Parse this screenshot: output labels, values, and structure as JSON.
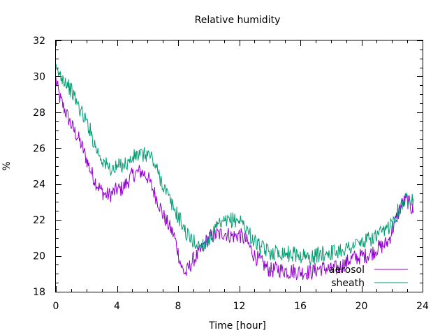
{
  "chart_data": {
    "type": "line",
    "title": "Relative humidity",
    "xlabel": "Time [hour]",
    "ylabel": "%",
    "xlim": [
      0,
      24
    ],
    "ylim": [
      18,
      32
    ],
    "xticks": [
      0,
      4,
      8,
      12,
      16,
      20,
      24
    ],
    "yticks": [
      18,
      20,
      22,
      24,
      26,
      28,
      30,
      32
    ],
    "x_minor_step": 1,
    "y_minor_step": 0.5,
    "grid": false,
    "legend_position": "bottom-right",
    "series": [
      {
        "name": "aerosol",
        "color": "#9400d3",
        "x": [
          0,
          0.25,
          0.5,
          0.75,
          1,
          1.25,
          1.5,
          1.75,
          2,
          2.25,
          2.5,
          2.75,
          3,
          3.25,
          3.5,
          3.75,
          4,
          4.25,
          4.5,
          4.75,
          5,
          5.25,
          5.5,
          5.75,
          6,
          6.25,
          6.5,
          6.75,
          7,
          7.25,
          7.5,
          7.75,
          8,
          8.25,
          8.5,
          8.75,
          9,
          9.25,
          9.5,
          9.75,
          10,
          10.25,
          10.5,
          10.75,
          11,
          11.25,
          11.5,
          11.75,
          12,
          12.25,
          12.5,
          12.75,
          13,
          13.25,
          13.5,
          13.75,
          14,
          14.25,
          14.5,
          14.75,
          15,
          15.25,
          15.5,
          15.75,
          16,
          16.25,
          16.5,
          16.75,
          17,
          17.25,
          17.5,
          17.75,
          18,
          18.25,
          18.5,
          18.75,
          19,
          19.25,
          19.5,
          19.75,
          20,
          20.25,
          20.5,
          20.75,
          21,
          21.25,
          21.5,
          21.75,
          22,
          22.25,
          22.5,
          22.75,
          23,
          23.25,
          23.4
        ],
        "y": [
          29.8,
          28.8,
          28.3,
          27.8,
          27.3,
          26.9,
          26.5,
          26.0,
          25.4,
          24.8,
          24.3,
          23.9,
          23.6,
          23.4,
          23.4,
          23.5,
          23.7,
          23.7,
          23.9,
          24.2,
          24.5,
          24.6,
          24.7,
          24.6,
          24.4,
          23.9,
          23.4,
          22.9,
          22.3,
          21.9,
          21.5,
          21.1,
          20.2,
          19.3,
          19.0,
          19.4,
          19.8,
          20.0,
          20.3,
          20.7,
          21.0,
          21.1,
          21.2,
          21.2,
          21.3,
          21.2,
          21.1,
          21.1,
          21.2,
          21.0,
          20.8,
          20.4,
          20.0,
          19.8,
          19.6,
          19.4,
          19.2,
          19.2,
          19.3,
          19.2,
          19.2,
          19.1,
          19.2,
          19.1,
          19.1,
          19.1,
          19.1,
          19.1,
          19.2,
          19.3,
          19.3,
          19.3,
          19.2,
          19.3,
          19.3,
          19.5,
          19.6,
          19.8,
          19.9,
          19.9,
          20.0,
          20.0,
          20.1,
          20.2,
          20.4,
          20.5,
          20.6,
          20.8,
          21.4,
          22.0,
          22.6,
          23.0,
          23.1,
          22.7,
          22.5
        ]
      },
      {
        "name": "sheath",
        "color": "#009e73",
        "x": [
          0,
          0.25,
          0.5,
          0.75,
          1,
          1.25,
          1.5,
          1.75,
          2,
          2.25,
          2.5,
          2.75,
          3,
          3.25,
          3.5,
          3.75,
          4,
          4.25,
          4.5,
          4.75,
          5,
          5.25,
          5.5,
          5.75,
          6,
          6.25,
          6.5,
          6.75,
          7,
          7.25,
          7.5,
          7.75,
          8,
          8.25,
          8.5,
          8.75,
          9,
          9.25,
          9.5,
          9.75,
          10,
          10.25,
          10.5,
          10.75,
          11,
          11.25,
          11.5,
          11.75,
          12,
          12.25,
          12.5,
          12.75,
          13,
          13.25,
          13.5,
          13.75,
          14,
          14.25,
          14.5,
          14.75,
          15,
          15.25,
          15.5,
          15.75,
          16,
          16.25,
          16.5,
          16.75,
          17,
          17.25,
          17.5,
          17.75,
          18,
          18.25,
          18.5,
          18.75,
          19,
          19.25,
          19.5,
          19.75,
          20,
          20.25,
          20.5,
          20.75,
          21,
          21.25,
          21.5,
          21.75,
          22,
          22.25,
          22.5,
          22.75,
          23,
          23.25,
          23.4
        ],
        "y": [
          30.3,
          30.1,
          29.9,
          29.6,
          29.2,
          28.8,
          28.3,
          27.9,
          27.5,
          27.0,
          26.3,
          25.8,
          25.4,
          25.1,
          24.9,
          24.8,
          24.9,
          25.1,
          25.1,
          25.2,
          25.4,
          25.6,
          25.6,
          25.6,
          25.7,
          25.5,
          25.0,
          24.5,
          24.0,
          23.5,
          23.0,
          22.6,
          22.2,
          21.8,
          21.3,
          21.0,
          20.8,
          20.6,
          20.6,
          20.7,
          20.9,
          21.2,
          21.5,
          21.7,
          21.8,
          21.9,
          22.0,
          22.0,
          22.0,
          21.8,
          21.5,
          21.1,
          20.8,
          20.6,
          20.4,
          20.3,
          20.2,
          20.2,
          20.2,
          20.2,
          20.2,
          20.1,
          20.1,
          20.1,
          20.0,
          20.0,
          19.9,
          19.9,
          20.0,
          20.1,
          20.1,
          20.2,
          20.2,
          20.2,
          20.3,
          20.4,
          20.4,
          20.5,
          20.6,
          20.7,
          20.7,
          20.8,
          20.9,
          21.0,
          21.1,
          21.2,
          21.3,
          21.6,
          21.9,
          22.3,
          22.7,
          23.0,
          23.2,
          23.3,
          23.2
        ]
      }
    ]
  }
}
